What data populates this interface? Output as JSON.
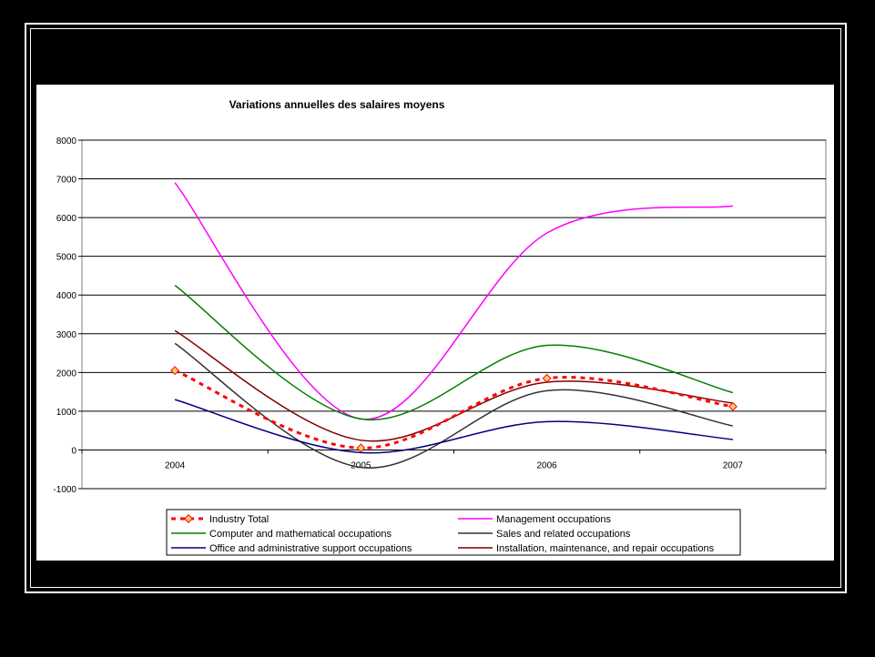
{
  "chart_data": {
    "type": "line",
    "title": "Variations annuelles des salaires moyens",
    "xlabel": "",
    "ylabel": "",
    "categories": [
      "2004",
      "2005",
      "2006",
      "2007"
    ],
    "ylim": [
      -1000,
      8000
    ],
    "yticks": [
      "8000",
      "7000",
      "6000",
      "5000",
      "4000",
      "3000",
      "2000",
      "1000",
      "0",
      "-1000"
    ],
    "grid": true,
    "smooth": true,
    "legend": "bottom",
    "series": [
      {
        "name": "Industry Total",
        "values": [
          2050,
          50,
          1850,
          1120
        ],
        "color": "#ff0000",
        "style": "dotted-marker"
      },
      {
        "name": "Management occupations",
        "values": [
          6900,
          800,
          5600,
          6300
        ],
        "color": "#ff00ff",
        "style": "solid"
      },
      {
        "name": "Computer and mathematical occupations",
        "values": [
          4250,
          800,
          2700,
          1480
        ],
        "color": "#008000",
        "style": "solid"
      },
      {
        "name": "Sales and related occupations",
        "values": [
          2750,
          -450,
          1530,
          620
        ],
        "color": "#333333",
        "style": "solid"
      },
      {
        "name": "Office and administrative support occupations",
        "values": [
          1300,
          -70,
          730,
          270
        ],
        "color": "#000080",
        "style": "solid"
      },
      {
        "name": "Installation, maintenance, and repair occupations",
        "values": [
          3080,
          250,
          1750,
          1210
        ],
        "color": "#800000",
        "style": "solid"
      }
    ]
  }
}
